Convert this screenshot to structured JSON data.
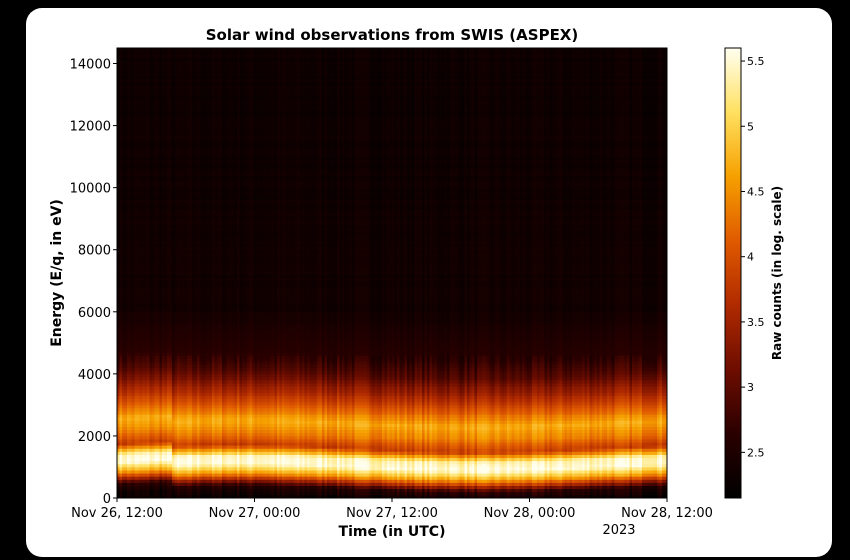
{
  "chart_data": {
    "type": "heatmap",
    "title": "Solar wind observations from SWIS (ASPEX)",
    "xlabel": "Time (in UTC)",
    "ylabel": "Energy (E/q, in eV)",
    "x_ticks": [
      "Nov 26, 12:00",
      "Nov 27, 00:00",
      "Nov 27, 12:00",
      "Nov 28, 00:00",
      "Nov 28, 12:00"
    ],
    "x_tick_sublabel": "2023",
    "x_range": [
      "Nov 26, 12:00",
      "Nov 28, 12:00"
    ],
    "y_ticks": [
      0,
      2000,
      4000,
      6000,
      8000,
      10000,
      12000,
      14000
    ],
    "ylim": [
      0,
      14500
    ],
    "colorbar": {
      "label": "Raw counts (in log. scale)",
      "ticks": [
        2.5,
        3,
        3.5,
        4,
        4.5,
        5,
        5.5
      ],
      "range": [
        2.15,
        5.6
      ],
      "colormap": [
        "#000000",
        "#2a0000",
        "#6e0d00",
        "#b02a00",
        "#e05a00",
        "#f6a000",
        "#ffe060",
        "#fffff0"
      ]
    },
    "background_level": 2.35,
    "spectral_profile": [
      {
        "energy": 0,
        "value": 2.3
      },
      {
        "energy": 300,
        "value": 2.6
      },
      {
        "energy": 700,
        "value": 4.6
      },
      {
        "energy": 1000,
        "value": 5.55
      },
      {
        "energy": 1250,
        "value": 5.4
      },
      {
        "energy": 1600,
        "value": 3.8
      },
      {
        "energy": 2000,
        "value": 4.4
      },
      {
        "energy": 2400,
        "value": 4.7
      },
      {
        "energy": 2800,
        "value": 4.2
      },
      {
        "energy": 3400,
        "value": 3.5
      },
      {
        "energy": 4000,
        "value": 2.9
      },
      {
        "energy": 4600,
        "value": 2.6
      },
      {
        "energy": 6000,
        "value": 2.35
      },
      {
        "energy": 14500,
        "value": 2.3
      }
    ],
    "x_cells": 220,
    "y_cells": 145
  }
}
